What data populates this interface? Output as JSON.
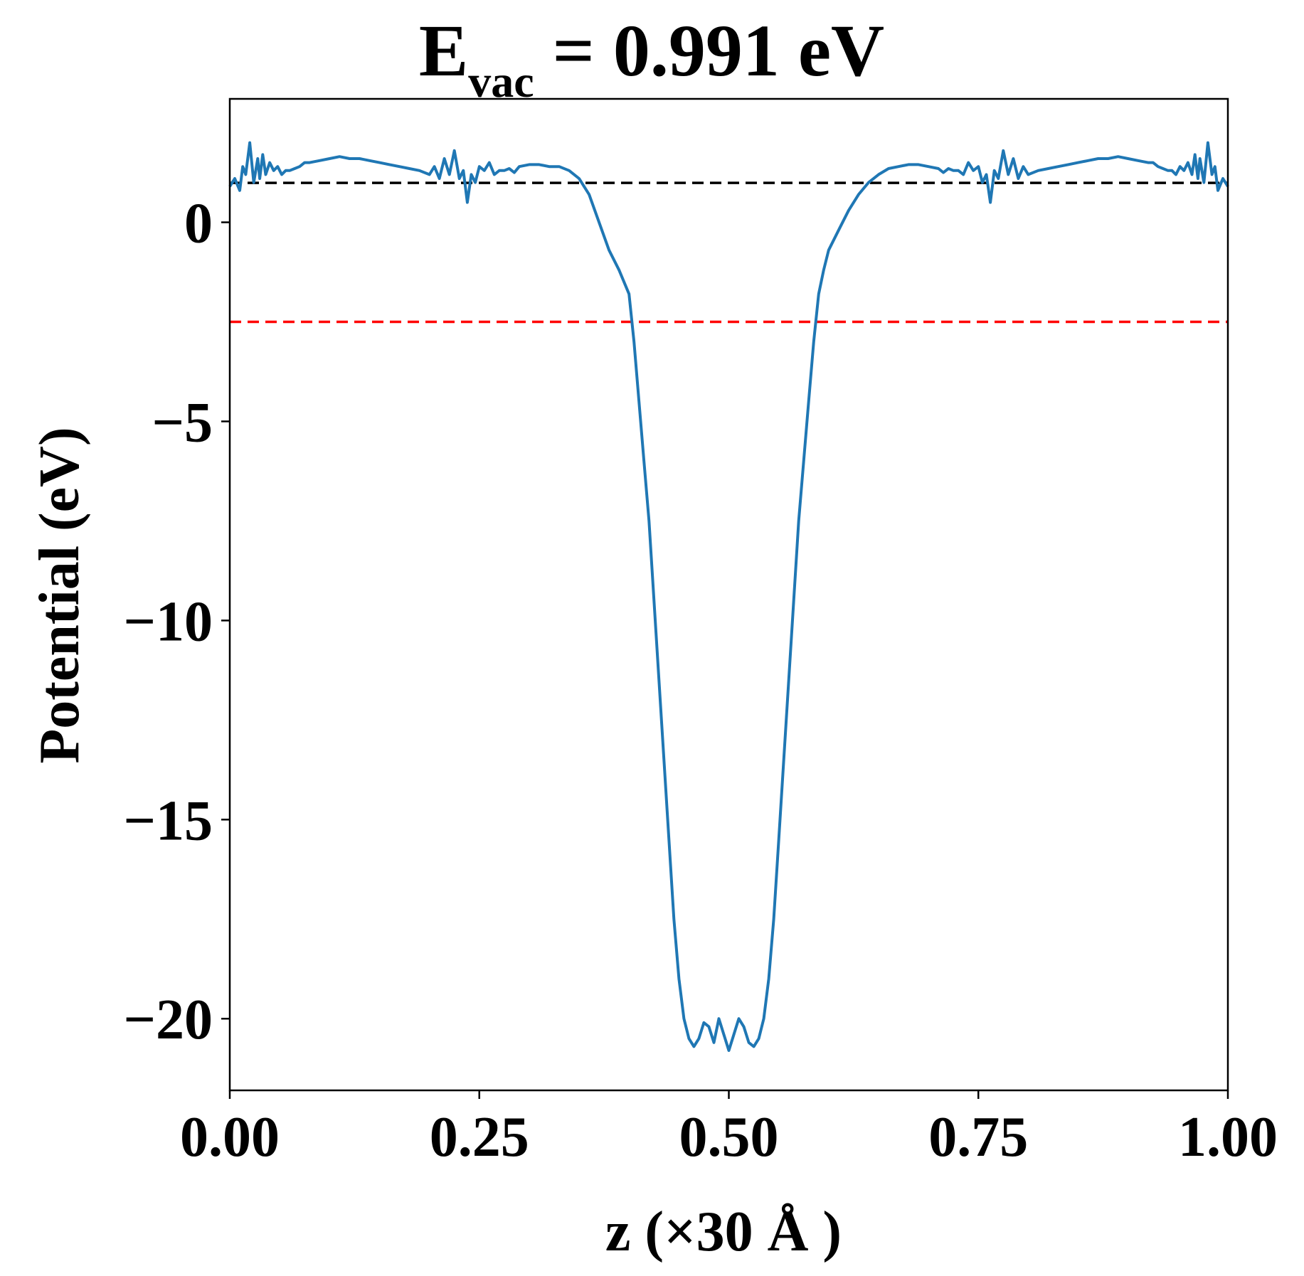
{
  "chart_data": {
    "type": "line",
    "title": {
      "prefix": "E",
      "subscript": "vac",
      "suffix": " = 0.991 eV"
    },
    "xlabel": "z (×30 Å )",
    "ylabel": "Potential (eV)",
    "xlim": [
      0.0,
      1.0
    ],
    "ylim": [
      -21.8,
      3.1
    ],
    "xticks": [
      {
        "value": 0.0,
        "label": "0.00"
      },
      {
        "value": 0.25,
        "label": "0.25"
      },
      {
        "value": 0.5,
        "label": "0.50"
      },
      {
        "value": 0.75,
        "label": "0.75"
      },
      {
        "value": 1.0,
        "label": "1.00"
      }
    ],
    "yticks": [
      {
        "value": 0,
        "label": "0"
      },
      {
        "value": -5,
        "label": "−5"
      },
      {
        "value": -10,
        "label": "−10"
      },
      {
        "value": -15,
        "label": "−15"
      },
      {
        "value": -20,
        "label": "−20"
      }
    ],
    "grid": false,
    "series": [
      {
        "color": "#1f77b4",
        "x": [
          0.0,
          0.005,
          0.01,
          0.013,
          0.016,
          0.02,
          0.024,
          0.028,
          0.03,
          0.033,
          0.036,
          0.04,
          0.044,
          0.048,
          0.052,
          0.056,
          0.06,
          0.065,
          0.07,
          0.075,
          0.08,
          0.09,
          0.1,
          0.11,
          0.12,
          0.13,
          0.14,
          0.15,
          0.16,
          0.17,
          0.18,
          0.19,
          0.2,
          0.205,
          0.21,
          0.215,
          0.22,
          0.225,
          0.23,
          0.234,
          0.238,
          0.242,
          0.246,
          0.25,
          0.255,
          0.26,
          0.265,
          0.27,
          0.275,
          0.28,
          0.285,
          0.29,
          0.3,
          0.31,
          0.32,
          0.33,
          0.34,
          0.35,
          0.36,
          0.37,
          0.38,
          0.39,
          0.4,
          0.405,
          0.41,
          0.415,
          0.42,
          0.425,
          0.43,
          0.435,
          0.44,
          0.445,
          0.45,
          0.455,
          0.46,
          0.465,
          0.47,
          0.475,
          0.48,
          0.485,
          0.49,
          0.495,
          0.5,
          0.505,
          0.51,
          0.515,
          0.52,
          0.525,
          0.53,
          0.535,
          0.54,
          0.545,
          0.55,
          0.555,
          0.56,
          0.565,
          0.57,
          0.575,
          0.58,
          0.585,
          0.59,
          0.595,
          0.6,
          0.61,
          0.62,
          0.63,
          0.64,
          0.65,
          0.66,
          0.67,
          0.68,
          0.69,
          0.7,
          0.71,
          0.715,
          0.72,
          0.725,
          0.73,
          0.735,
          0.74,
          0.745,
          0.75,
          0.754,
          0.758,
          0.762,
          0.766,
          0.77,
          0.775,
          0.78,
          0.785,
          0.79,
          0.795,
          0.8,
          0.81,
          0.82,
          0.83,
          0.84,
          0.85,
          0.86,
          0.87,
          0.88,
          0.89,
          0.9,
          0.91,
          0.92,
          0.925,
          0.93,
          0.935,
          0.94,
          0.944,
          0.948,
          0.952,
          0.956,
          0.96,
          0.964,
          0.967,
          0.97,
          0.972,
          0.976,
          0.98,
          0.984,
          0.987,
          0.99,
          0.995,
          1.0
        ],
        "y": [
          0.9,
          1.1,
          0.8,
          1.4,
          1.2,
          2.0,
          1.0,
          1.6,
          1.1,
          1.7,
          1.2,
          1.5,
          1.3,
          1.4,
          1.2,
          1.3,
          1.3,
          1.35,
          1.4,
          1.5,
          1.5,
          1.55,
          1.6,
          1.65,
          1.6,
          1.6,
          1.55,
          1.5,
          1.45,
          1.4,
          1.35,
          1.3,
          1.2,
          1.4,
          1.1,
          1.6,
          1.2,
          1.8,
          1.1,
          1.3,
          0.5,
          1.2,
          1.0,
          1.4,
          1.3,
          1.5,
          1.2,
          1.3,
          1.3,
          1.35,
          1.25,
          1.4,
          1.45,
          1.45,
          1.4,
          1.4,
          1.3,
          1.1,
          0.7,
          0.0,
          -0.7,
          -1.2,
          -1.8,
          -3.0,
          -4.5,
          -6.0,
          -7.5,
          -9.5,
          -11.5,
          -13.5,
          -15.5,
          -17.5,
          -19.0,
          -20.0,
          -20.5,
          -20.7,
          -20.5,
          -20.1,
          -20.2,
          -20.6,
          -20.0,
          -20.4,
          -20.8,
          -20.4,
          -20.0,
          -20.2,
          -20.6,
          -20.7,
          -20.5,
          -20.0,
          -19.0,
          -17.5,
          -15.5,
          -13.5,
          -11.5,
          -9.5,
          -7.5,
          -6.0,
          -4.5,
          -3.0,
          -1.8,
          -1.2,
          -0.7,
          -0.2,
          0.3,
          0.7,
          1.0,
          1.2,
          1.35,
          1.4,
          1.45,
          1.45,
          1.4,
          1.35,
          1.25,
          1.35,
          1.3,
          1.3,
          1.2,
          1.5,
          1.3,
          1.4,
          1.0,
          1.2,
          0.5,
          1.3,
          1.1,
          1.8,
          1.2,
          1.6,
          1.1,
          1.4,
          1.2,
          1.3,
          1.35,
          1.4,
          1.45,
          1.5,
          1.55,
          1.6,
          1.6,
          1.65,
          1.6,
          1.55,
          1.5,
          1.5,
          1.4,
          1.35,
          1.3,
          1.3,
          1.2,
          1.4,
          1.3,
          1.5,
          1.2,
          1.7,
          1.1,
          1.6,
          1.0,
          2.0,
          1.2,
          1.4,
          0.8,
          1.1,
          0.9
        ]
      }
    ],
    "reference_lines": [
      {
        "y": 0.991,
        "color": "#000000",
        "style": "dashed"
      },
      {
        "y": -2.5,
        "color": "#ff0000",
        "style": "dashed"
      }
    ]
  }
}
